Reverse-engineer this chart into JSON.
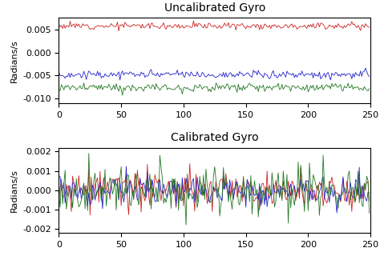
{
  "title_uncal": "Uncalibrated Gyro",
  "title_cal": "Calibrated Gyro",
  "ylabel": "Radians/s",
  "n_points": 250,
  "uncal_red_mean": 0.0058,
  "uncal_red_noise": 0.00035,
  "uncal_blue_mean": -0.0048,
  "uncal_blue_noise": 0.00045,
  "uncal_green_mean": -0.0076,
  "uncal_green_noise": 0.00045,
  "cal_red_noise": 0.00045,
  "cal_blue_noise": 0.0004,
  "cal_green_noise": 0.00065,
  "ylim_uncal": [
    -0.011,
    0.0075
  ],
  "ylim_cal": [
    -0.0022,
    0.0022
  ],
  "xlim": [
    0,
    250
  ],
  "red_color": "#cc2222",
  "blue_color": "#2222cc",
  "green_color": "#227722",
  "linewidth": 0.6,
  "seed": 12,
  "title_fontsize": 10,
  "tick_fontsize": 8,
  "ylabel_fontsize": 8
}
